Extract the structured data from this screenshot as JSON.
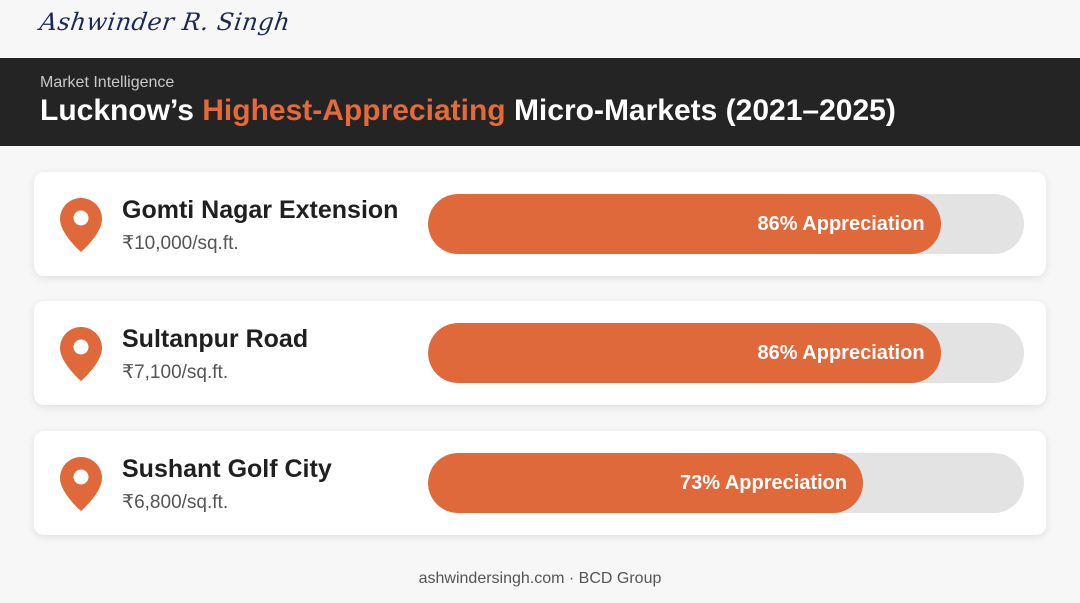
{
  "signature": "Ashwinder R. Singh",
  "header": {
    "kicker": "Market Intelligence",
    "title_prefix": "Lucknow’s ",
    "title_accent": "Highest-Appreciating",
    "title_suffix": " Micro-Markets (2021–2025)"
  },
  "colors": {
    "accent": "#e26a3b",
    "bar_fill": "#e0693b",
    "bar_track": "#e3e3e3",
    "header_bg": "#242424"
  },
  "icons": {
    "pin": "map-pin-icon"
  },
  "chart_data": {
    "type": "bar",
    "orientation": "horizontal",
    "title": "Lucknow’s Highest-Appreciating Micro-Markets (2021–2025)",
    "categories": [
      "Gomti Nagar Extension",
      "Sultanpur Road",
      "Sushant Golf City"
    ],
    "values": [
      86,
      86,
      73
    ],
    "unit": "%",
    "xlim": [
      0,
      100
    ],
    "items": [
      {
        "name": "Gomti Nagar Extension",
        "price": "₹10,000/sq.ft.",
        "value": 86,
        "label": "86% Appreciation"
      },
      {
        "name": "Sultanpur Road",
        "price": "₹7,100/sq.ft.",
        "value": 86,
        "label": "86% Appreciation"
      },
      {
        "name": "Sushant Golf City",
        "price": "₹6,800/sq.ft.",
        "value": 73,
        "label": "73% Appreciation"
      }
    ]
  },
  "footer": "ashwindersingh.com · BCD Group"
}
